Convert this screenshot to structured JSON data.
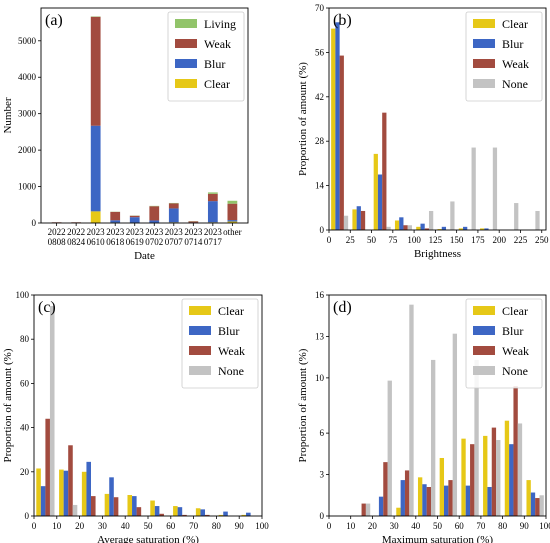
{
  "figure": {
    "panels": [
      "a",
      "b",
      "c",
      "d"
    ]
  },
  "chart_data": [
    {
      "panel_label": "(a)",
      "type": "bar",
      "stacked": true,
      "xlabel": "Date",
      "ylabel": "Number",
      "ylim": [
        0,
        5900
      ],
      "yticks": [
        0,
        1000,
        2000,
        3000,
        4000,
        5000
      ],
      "categories": [
        [
          "2022",
          "0808"
        ],
        [
          "2022",
          "0824"
        ],
        [
          "2023",
          "0610"
        ],
        [
          "2023",
          "0618"
        ],
        [
          "2023",
          "0619"
        ],
        [
          "2023",
          "0702"
        ],
        [
          "2023",
          "0707"
        ],
        [
          "2023",
          "0714"
        ],
        [
          "2023",
          "0717"
        ],
        [
          "other"
        ]
      ],
      "series": [
        {
          "name": "Clear",
          "color": "#e6c817",
          "values": [
            5,
            5,
            320,
            15,
            10,
            10,
            20,
            5,
            20,
            40
          ]
        },
        {
          "name": "Blur",
          "color": "#3d66c4",
          "values": [
            5,
            5,
            2350,
            60,
            150,
            60,
            380,
            10,
            580,
            40
          ]
        },
        {
          "name": "Weak",
          "color": "#a24b3f",
          "values": [
            10,
            10,
            2990,
            230,
            40,
            390,
            140,
            30,
            200,
            450
          ]
        },
        {
          "name": "Living",
          "color": "#92c46a",
          "values": [
            0,
            0,
            10,
            5,
            5,
            10,
            10,
            5,
            40,
            80
          ]
        }
      ],
      "legend": [
        "Living",
        "Weak",
        "Blur",
        "Clear"
      ],
      "legend_position": "top-right",
      "grid": false
    },
    {
      "panel_label": "(b)",
      "type": "bar",
      "xlabel": "Brightness",
      "ylabel": "Proportion of amount (%)",
      "ylim": [
        0,
        70
      ],
      "yticks": [
        0,
        14,
        28,
        42,
        56,
        70
      ],
      "xticks": [
        0,
        25,
        50,
        75,
        100,
        125,
        150,
        175,
        200,
        225,
        250
      ],
      "x": [
        12.5,
        37.5,
        62.5,
        87.5,
        112.5,
        137.5,
        162.5,
        187.5,
        212.5,
        237.5
      ],
      "xlim": [
        0,
        255
      ],
      "series": [
        {
          "name": "Clear",
          "color": "#e6c817",
          "values": [
            63.5,
            6.5,
            24.0,
            3.0,
            1.0,
            0.3,
            0.5,
            0.5,
            0,
            0
          ]
        },
        {
          "name": "Blur",
          "color": "#3d66c4",
          "values": [
            65.5,
            7.5,
            17.5,
            4.0,
            2.0,
            1.0,
            1.0,
            0.5,
            0,
            0
          ]
        },
        {
          "name": "Weak",
          "color": "#a24b3f",
          "values": [
            55.0,
            6.0,
            37.0,
            1.5,
            0.5,
            0,
            0,
            0,
            0,
            0
          ]
        },
        {
          "name": "None",
          "color": "#c3c3c3",
          "values": [
            4.5,
            0,
            1.0,
            1.5,
            6.0,
            9.0,
            26.0,
            26.0,
            8.5,
            6.0
          ]
        }
      ],
      "legend": [
        "Clear",
        "Blur",
        "Weak",
        "None"
      ],
      "legend_position": "top-right",
      "grid": false
    },
    {
      "panel_label": "(c)",
      "type": "bar",
      "xlabel": "Average saturation (%)",
      "ylabel": "Proportion of amount (%)",
      "ylim": [
        0,
        100
      ],
      "yticks": [
        0,
        20,
        40,
        60,
        80,
        100
      ],
      "xticks": [
        0,
        10,
        20,
        30,
        40,
        50,
        60,
        70,
        80,
        90,
        100
      ],
      "x": [
        5,
        15,
        25,
        35,
        45,
        55,
        65,
        75,
        85,
        95
      ],
      "xlim": [
        0,
        100
      ],
      "series": [
        {
          "name": "Clear",
          "color": "#e6c817",
          "values": [
            21.5,
            21.0,
            20.0,
            10.0,
            9.5,
            7.0,
            4.5,
            3.5,
            0.5,
            0.5
          ]
        },
        {
          "name": "Blur",
          "color": "#3d66c4",
          "values": [
            13.5,
            20.5,
            24.5,
            17.5,
            9.0,
            4.5,
            4.0,
            3.0,
            2.0,
            1.5
          ]
        },
        {
          "name": "Weak",
          "color": "#a24b3f",
          "values": [
            44.0,
            32.0,
            9.0,
            8.5,
            4.0,
            1.0,
            0.5,
            0.5,
            0,
            0
          ]
        },
        {
          "name": "None",
          "color": "#c3c3c3",
          "values": [
            95.0,
            5.0,
            0,
            0,
            0,
            0,
            0,
            0,
            0,
            0
          ]
        }
      ],
      "legend": [
        "Clear",
        "Blur",
        "Weak",
        "None"
      ],
      "legend_position": "top-right",
      "grid": false
    },
    {
      "panel_label": "(d)",
      "type": "bar",
      "xlabel": "Maximum saturation (%)",
      "ylabel": "Proportion of amount (%)",
      "ylim": [
        0,
        16
      ],
      "yticks": [
        0,
        3,
        6,
        10,
        13,
        16
      ],
      "xticks": [
        0,
        10,
        20,
        30,
        40,
        50,
        60,
        70,
        80,
        90,
        100
      ],
      "x": [
        5,
        15,
        25,
        35,
        45,
        55,
        65,
        75,
        85,
        95
      ],
      "xlim": [
        0,
        100
      ],
      "series": [
        {
          "name": "Clear",
          "color": "#e6c817",
          "values": [
            0,
            0,
            0,
            0.6,
            2.8,
            4.2,
            5.6,
            5.8,
            6.9,
            2.6
          ]
        },
        {
          "name": "Blur",
          "color": "#3d66c4",
          "values": [
            0,
            0,
            1.4,
            2.6,
            2.3,
            2.2,
            2.2,
            2.1,
            5.2,
            1.7
          ]
        },
        {
          "name": "Weak",
          "color": "#a24b3f",
          "values": [
            0,
            0.9,
            3.9,
            3.3,
            2.1,
            2.6,
            5.2,
            6.4,
            9.4,
            1.3
          ]
        },
        {
          "name": "None",
          "color": "#c3c3c3",
          "values": [
            0,
            0.9,
            9.8,
            15.3,
            11.3,
            13.2,
            11.3,
            5.5,
            6.7,
            1.5
          ]
        }
      ],
      "legend": [
        "Clear",
        "Blur",
        "Weak",
        "None"
      ],
      "legend_position": "top-right",
      "grid": false
    }
  ]
}
